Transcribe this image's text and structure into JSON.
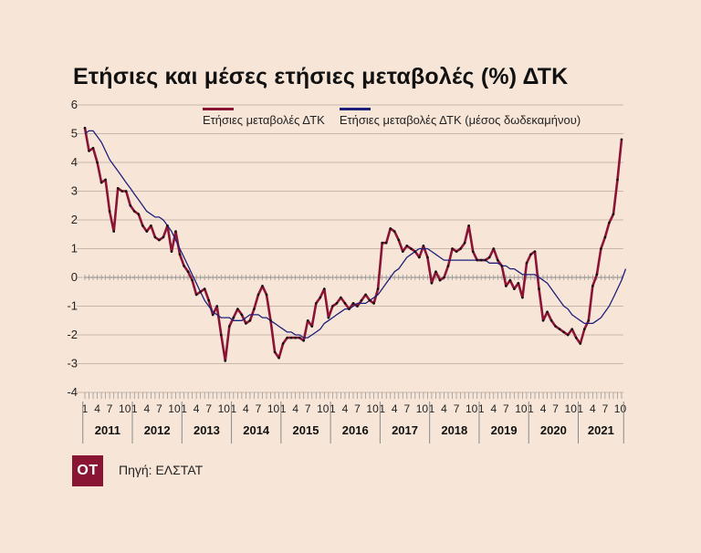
{
  "title": "Ετήσιες και μέσες ετήσιες μεταβολές (%) ΔΤΚ",
  "source": "Πηγή: ΕΛΣΤΑΤ",
  "logo_text": "OT",
  "colors": {
    "annual": "#8a1434",
    "average": "#1e1e7a",
    "background": "#f7e6d7"
  },
  "chart_data": {
    "type": "line",
    "title": "Ετήσιες και μέσες ετήσιες μεταβολές (%) ΔΤΚ",
    "ylim": [
      -4,
      6
    ],
    "y_ticks": [
      6,
      5,
      4,
      3,
      2,
      1,
      0,
      -1,
      -2,
      -3,
      -4
    ],
    "x_start": "2011-01",
    "x_end": "2021-10",
    "month_ticks": [
      "1",
      "4",
      "7",
      "10"
    ],
    "years": [
      "2011",
      "2012",
      "2013",
      "2014",
      "2015",
      "2016",
      "2017",
      "2018",
      "2019",
      "2020",
      "2021"
    ],
    "legend_position": "top",
    "series": [
      {
        "name": "Ετήσιες μεταβολές ΔΤΚ",
        "values": [
          5.2,
          4.4,
          4.5,
          4.0,
          3.3,
          3.4,
          2.3,
          1.6,
          3.1,
          3.0,
          3.0,
          2.5,
          2.3,
          2.2,
          1.8,
          1.6,
          1.8,
          1.4,
          1.3,
          1.4,
          1.8,
          0.9,
          1.6,
          0.8,
          0.4,
          0.2,
          -0.1,
          -0.6,
          -0.5,
          -0.4,
          -0.8,
          -1.3,
          -1.0,
          -2.0,
          -2.9,
          -1.7,
          -1.4,
          -1.1,
          -1.3,
          -1.6,
          -1.5,
          -1.1,
          -0.6,
          -0.3,
          -0.6,
          -1.5,
          -2.6,
          -2.8,
          -2.3,
          -2.1,
          -2.1,
          -2.1,
          -2.1,
          -2.2,
          -1.5,
          -1.7,
          -0.9,
          -0.7,
          -0.4,
          -1.4,
          -1.0,
          -0.9,
          -0.7,
          -0.9,
          -1.1,
          -0.9,
          -1.0,
          -0.8,
          -0.6,
          -0.8,
          -0.9,
          -0.4,
          1.2,
          1.2,
          1.7,
          1.6,
          1.3,
          0.9,
          1.1,
          1.0,
          0.9,
          0.7,
          1.1,
          0.7,
          -0.2,
          0.2,
          -0.1,
          0.0,
          0.4,
          1.0,
          0.9,
          1.0,
          1.2,
          1.8,
          0.9,
          0.6,
          0.6,
          0.6,
          0.7,
          1.0,
          0.6,
          0.4,
          -0.3,
          -0.1,
          -0.4,
          -0.2,
          -0.7,
          0.5,
          0.8,
          0.9,
          -0.4,
          -1.5,
          -1.2,
          -1.5,
          -1.7,
          -1.8,
          -1.9,
          -2.0,
          -1.8,
          -2.1,
          -2.3,
          -1.8,
          -1.5,
          -0.3,
          0.1,
          1.0,
          1.4,
          1.9,
          2.2,
          3.4,
          4.8
        ],
        "color": "#8a1434"
      },
      {
        "name": "Ετήσιες μεταβολές ΔΤΚ (μέσος δωδεκαμήνου)",
        "values": [
          5.0,
          5.1,
          5.1,
          4.9,
          4.7,
          4.4,
          4.1,
          3.9,
          3.7,
          3.5,
          3.3,
          3.1,
          2.9,
          2.7,
          2.5,
          2.3,
          2.2,
          2.1,
          2.1,
          2.0,
          1.8,
          1.6,
          1.3,
          1.0,
          0.7,
          0.4,
          0.1,
          -0.2,
          -0.5,
          -0.8,
          -1.0,
          -1.2,
          -1.3,
          -1.4,
          -1.4,
          -1.4,
          -1.5,
          -1.5,
          -1.5,
          -1.4,
          -1.3,
          -1.3,
          -1.3,
          -1.4,
          -1.4,
          -1.5,
          -1.6,
          -1.7,
          -1.8,
          -1.9,
          -1.9,
          -2.0,
          -2.0,
          -2.1,
          -2.1,
          -2.0,
          -1.9,
          -1.8,
          -1.6,
          -1.5,
          -1.4,
          -1.3,
          -1.2,
          -1.1,
          -1.1,
          -1.0,
          -0.9,
          -0.9,
          -0.9,
          -0.8,
          -0.7,
          -0.6,
          -0.4,
          -0.2,
          0.0,
          0.2,
          0.3,
          0.5,
          0.7,
          0.8,
          0.9,
          1.0,
          1.0,
          1.0,
          0.9,
          0.8,
          0.7,
          0.6,
          0.6,
          0.6,
          0.6,
          0.6,
          0.6,
          0.6,
          0.6,
          0.6,
          0.6,
          0.6,
          0.5,
          0.5,
          0.5,
          0.4,
          0.4,
          0.3,
          0.3,
          0.2,
          0.1,
          0.1,
          0.1,
          0.1,
          0.0,
          -0.1,
          -0.2,
          -0.4,
          -0.6,
          -0.8,
          -1.0,
          -1.1,
          -1.3,
          -1.4,
          -1.5,
          -1.6,
          -1.6,
          -1.6,
          -1.5,
          -1.4,
          -1.2,
          -1.0,
          -0.7,
          -0.4,
          -0.1,
          0.3
        ],
        "color": "#1e1e7a"
      }
    ]
  }
}
